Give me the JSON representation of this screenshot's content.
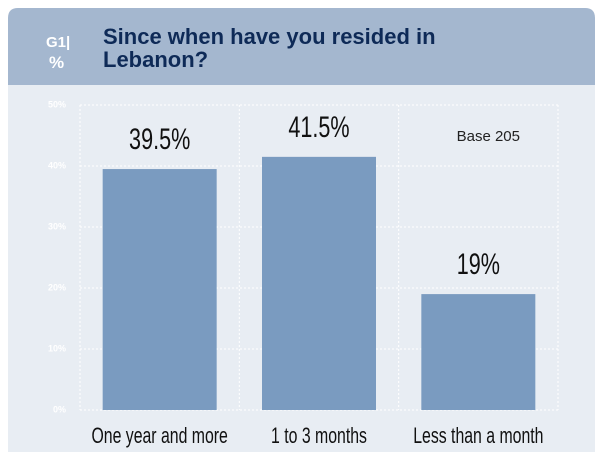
{
  "chart_data": {
    "type": "bar",
    "code": "G1|",
    "code_unit": "%",
    "title": "Since when have you resided in Lebanon?",
    "annotation": "Base 205",
    "categories": [
      "One year and more",
      "1 to 3 months",
      "Less than a month"
    ],
    "values": [
      39.5,
      41.5,
      19
    ],
    "value_labels": [
      "39.5%",
      "41.5%",
      "19%"
    ],
    "color": "#7a9bc0",
    "ylim": [
      0,
      50
    ],
    "yticks": [
      {
        "value": 0,
        "label": "0%"
      },
      {
        "value": 10,
        "label": "10%"
      },
      {
        "value": 20,
        "label": "20%"
      },
      {
        "value": 30,
        "label": "30%"
      },
      {
        "value": 40,
        "label": "40%"
      },
      {
        "value": 50,
        "label": "50%"
      }
    ],
    "grid": true
  }
}
